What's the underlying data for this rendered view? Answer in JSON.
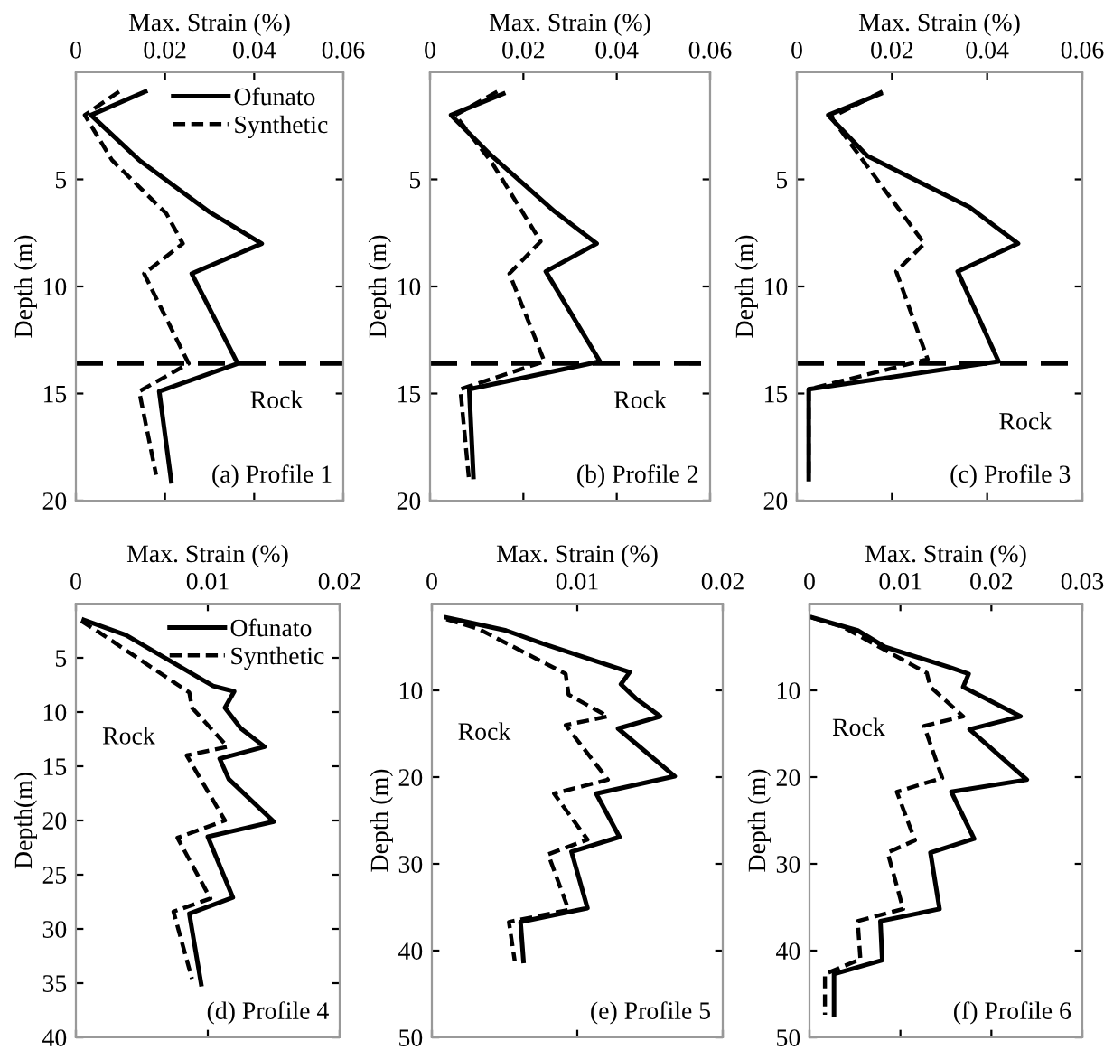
{
  "chart_data": [
    {
      "type": "line",
      "xlabel": "Max. Strain (%)",
      "ylabel": "Depth (m)",
      "xlim": [
        0,
        0.06
      ],
      "xticks": [
        0,
        0.02,
        0.04,
        0.06
      ],
      "ylim": [
        20,
        0
      ],
      "yticks": [
        5,
        10,
        15,
        20
      ],
      "legend": "top right",
      "grid": false,
      "series": [
        {
          "name": "Ofunato",
          "color": "#000000",
          "line_style": "solid",
          "x": [
            0.0156,
            0.0034,
            0.0142,
            0.0298,
            0.0417,
            0.026,
            0.0363,
            0.0187,
            0.0214
          ],
          "values": [
            0.9,
            2.0,
            4.1,
            6.5,
            8.0,
            9.4,
            13.6,
            14.9,
            19.1
          ]
        },
        {
          "name": "Synthetic",
          "color": "#000000",
          "line_style": "dashed",
          "x": [
            0.0097,
            0.002,
            0.0081,
            0.0203,
            0.024,
            0.0153,
            0.0253,
            0.0142,
            0.018
          ],
          "values": [
            0.9,
            2.0,
            4.1,
            6.6,
            8.0,
            9.4,
            13.6,
            14.9,
            18.8
          ]
        }
      ],
      "ref_lines": [
        {
          "axis": "y",
          "value": 13.6,
          "color": "#000000",
          "line_style": "dashed"
        }
      ],
      "annotations": [
        "Rock",
        "(a) Profile 1"
      ]
    },
    {
      "type": "line",
      "xlabel": "Max. Strain (%)",
      "ylabel": "Depth (m)",
      "xlim": [
        0,
        0.06
      ],
      "xticks": [
        0,
        0.02,
        0.04,
        0.06
      ],
      "ylim": [
        20,
        0
      ],
      "yticks": [
        5,
        10,
        15,
        20
      ],
      "grid": false,
      "series": [
        {
          "color": "#000000",
          "line_style": "solid",
          "x": [
            0.0157,
            0.0045,
            0.0132,
            0.0267,
            0.0357,
            0.0248,
            0.0364,
            0.0084,
            0.0093
          ],
          "values": [
            1.0,
            2.0,
            3.9,
            6.5,
            8.0,
            9.3,
            13.5,
            14.8,
            18.9
          ]
        },
        {
          "color": "#000000",
          "line_style": "dashed",
          "x": [
            0.0144,
            0.0054,
            0.0132,
            0.0237,
            0.017,
            0.0245,
            0.0065,
            0.0083
          ],
          "values": [
            0.9,
            2.0,
            4.2,
            7.9,
            9.4,
            13.5,
            14.8,
            18.9
          ]
        }
      ],
      "ref_lines": [
        {
          "axis": "y",
          "value": 13.6,
          "color": "#000000",
          "line_style": "dashed"
        }
      ],
      "annotations": [
        "Rock",
        "(b) Profile 2"
      ]
    },
    {
      "type": "line",
      "xlabel": "Max. Strain (%)",
      "ylabel": "Depth (m)",
      "xlim": [
        0,
        0.06
      ],
      "xticks": [
        0,
        0.02,
        0.04,
        0.06
      ],
      "ylim": [
        20,
        0
      ],
      "yticks": [
        5,
        10,
        15,
        20
      ],
      "grid": false,
      "series": [
        {
          "color": "#000000",
          "line_style": "solid",
          "x": [
            0.0176,
            0.0066,
            0.0148,
            0.0363,
            0.0465,
            0.0338,
            0.0424,
            0.0025,
            0.0025
          ],
          "values": [
            1.0,
            2.0,
            3.9,
            6.3,
            8.0,
            9.3,
            13.5,
            14.8,
            19.0
          ]
        },
        {
          "color": "#000000",
          "line_style": "dashed",
          "x": [
            0.018,
            0.0072,
            0.0268,
            0.0209,
            0.0275,
            0.0025,
            0.0025
          ],
          "values": [
            0.9,
            2.1,
            8.0,
            9.3,
            13.4,
            14.8,
            19.0
          ]
        }
      ],
      "ref_lines": [
        {
          "axis": "y",
          "value": 13.6,
          "color": "#000000",
          "line_style": "dashed"
        }
      ],
      "annotations": [
        "Rock",
        "(c) Profile 3"
      ]
    },
    {
      "type": "line",
      "xlabel": "Max. Strain (%)",
      "ylabel": "Depth(m)",
      "xlim": [
        0,
        0.02
      ],
      "xticks": [
        0,
        0.01,
        0.02
      ],
      "ylim": [
        40,
        0
      ],
      "yticks": [
        5,
        10,
        15,
        20,
        25,
        30,
        35,
        40
      ],
      "legend": "top right",
      "grid": false,
      "series": [
        {
          "name": "Ofunato",
          "color": "#000000",
          "line_style": "solid",
          "x": [
            0.0006,
            0.0038,
            0.0104,
            0.012,
            0.0113,
            0.0125,
            0.0143,
            0.0109,
            0.0116,
            0.015,
            0.01,
            0.0119,
            0.0086,
            0.0095
          ],
          "values": [
            1.5,
            2.9,
            7.6,
            8.1,
            9.6,
            11.5,
            13.2,
            14.3,
            16.2,
            20.1,
            21.5,
            27.1,
            28.6,
            35.1
          ]
        },
        {
          "name": "Synthetic",
          "color": "#000000",
          "line_style": "dashed",
          "x": [
            0.0004,
            0.0017,
            0.0086,
            0.0088,
            0.0115,
            0.0084,
            0.0113,
            0.0077,
            0.0102,
            0.0074,
            0.0088
          ],
          "values": [
            1.6,
            2.6,
            8.2,
            9.6,
            13.2,
            14.0,
            20.0,
            21.6,
            27.2,
            28.4,
            34.6
          ]
        }
      ],
      "annotations": [
        "Rock",
        "(d) Profile 4"
      ]
    },
    {
      "type": "line",
      "xlabel": "Max. Strain (%)",
      "ylabel": "Depth (m)",
      "xlim": [
        0,
        0.02
      ],
      "xticks": [
        0,
        0.01,
        0.02
      ],
      "ylim": [
        50,
        0
      ],
      "yticks": [
        10,
        20,
        30,
        40,
        50
      ],
      "grid": false,
      "series": [
        {
          "color": "#000000",
          "line_style": "solid",
          "x": [
            0.001,
            0.0051,
            0.0076,
            0.0136,
            0.013,
            0.014,
            0.0157,
            0.0128,
            0.0167,
            0.0113,
            0.0129,
            0.0096,
            0.0107,
            0.0061,
            0.0063
          ],
          "values": [
            1.6,
            3.1,
            4.6,
            7.9,
            9.3,
            10.9,
            13.0,
            14.4,
            19.9,
            21.9,
            26.9,
            28.6,
            35.1,
            36.7,
            41.2
          ]
        },
        {
          "color": "#000000",
          "line_style": "dashed",
          "x": [
            0.001,
            0.0032,
            0.0092,
            0.0094,
            0.0121,
            0.0092,
            0.0121,
            0.0084,
            0.0107,
            0.008,
            0.0094,
            0.0053,
            0.0057
          ],
          "values": [
            1.8,
            2.9,
            8.1,
            10.5,
            13.0,
            14.0,
            20.3,
            21.9,
            27.2,
            28.9,
            35.3,
            36.7,
            41.2
          ]
        }
      ],
      "annotations": [
        "Rock",
        "(e) Profile 5"
      ]
    },
    {
      "type": "line",
      "xlabel": "Max. Strain (%)",
      "ylabel": "Depth (m)",
      "xlim": [
        0,
        0.03
      ],
      "xticks": [
        0,
        0.01,
        0.02,
        0.03
      ],
      "ylim": [
        50,
        0
      ],
      "yticks": [
        10,
        20,
        30,
        40,
        50
      ],
      "grid": false,
      "series": [
        {
          "color": "#000000",
          "line_style": "solid",
          "x": [
            0.0003,
            0.0053,
            0.0083,
            0.0156,
            0.0175,
            0.0169,
            0.0232,
            0.0176,
            0.0239,
            0.0156,
            0.0181,
            0.0133,
            0.0143,
            0.0078,
            0.008,
            0.0027,
            0.0027
          ],
          "values": [
            1.6,
            3.1,
            5.0,
            7.4,
            8.1,
            9.6,
            13.0,
            14.5,
            20.3,
            21.7,
            27.1,
            28.7,
            35.2,
            36.6,
            41.1,
            42.7,
            47.4
          ]
        },
        {
          "color": "#000000",
          "line_style": "dashed",
          "x": [
            0.0002,
            0.0037,
            0.0129,
            0.0133,
            0.0169,
            0.0126,
            0.0146,
            0.0096,
            0.0116,
            0.0086,
            0.0103,
            0.0053,
            0.0056,
            0.0017,
            0.0017
          ],
          "values": [
            1.6,
            2.7,
            8.0,
            9.6,
            13.0,
            14.1,
            20.1,
            21.7,
            27.3,
            28.7,
            35.2,
            36.6,
            41.0,
            42.7,
            47.4
          ]
        }
      ],
      "annotations": [
        "Rock",
        "(f) Profile 6"
      ]
    }
  ]
}
